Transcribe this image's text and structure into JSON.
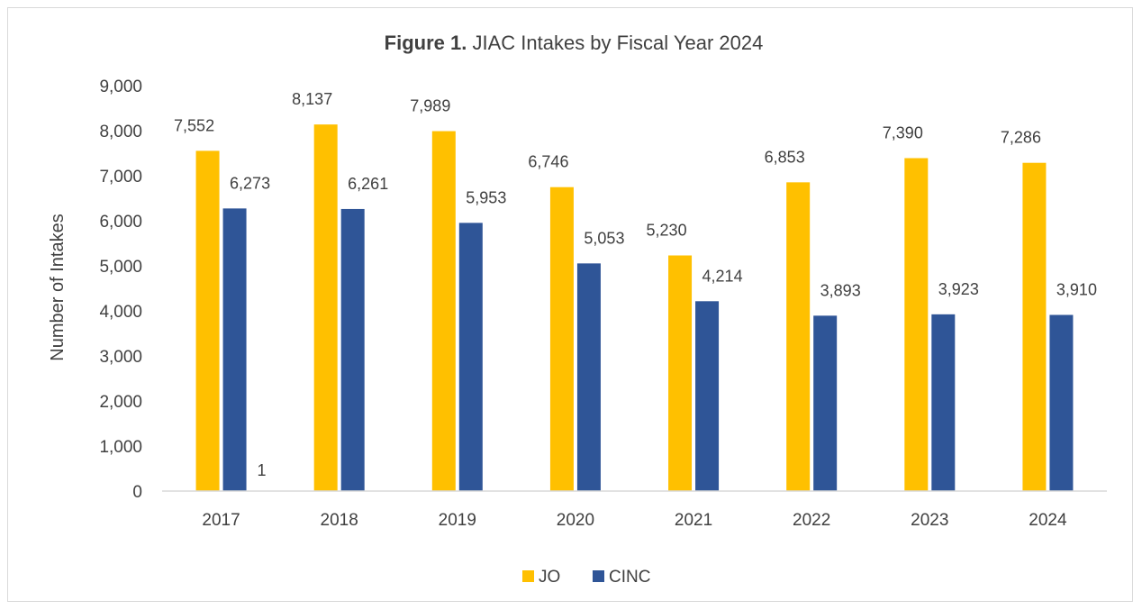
{
  "chart_data": {
    "type": "bar",
    "title_bold": "Figure 1.",
    "title_rest": " JIAC Intakes by Fiscal Year 2024",
    "xlabel": "",
    "ylabel": "Number of Intakes",
    "ylim": [
      0,
      9000
    ],
    "yticks": [
      "0",
      "1,000",
      "2,000",
      "3,000",
      "4,000",
      "5,000",
      "6,000",
      "7,000",
      "8,000",
      "9,000"
    ],
    "categories": [
      "2017",
      "2018",
      "2019",
      "2020",
      "2021",
      "2022",
      "2023",
      "2024"
    ],
    "series": [
      {
        "name": "JO",
        "color": "#FFC000",
        "values": [
          7552,
          8137,
          7989,
          6746,
          5230,
          6853,
          7390,
          7286
        ],
        "labels": [
          "7,552",
          "8,137",
          "7,989",
          "6,746",
          "5,230",
          "6,853",
          "7,390",
          "7,286"
        ]
      },
      {
        "name": "CINC",
        "color": "#2F5597",
        "values": [
          6273,
          6261,
          5953,
          5053,
          4214,
          3893,
          3923,
          3910
        ],
        "labels": [
          "6,273",
          "6,261",
          "5,953",
          "5,053",
          "4,214",
          "3,893",
          "3,923",
          "3,910"
        ]
      }
    ],
    "extra_annotation": "1",
    "grid": false,
    "legend_position": "bottom"
  }
}
